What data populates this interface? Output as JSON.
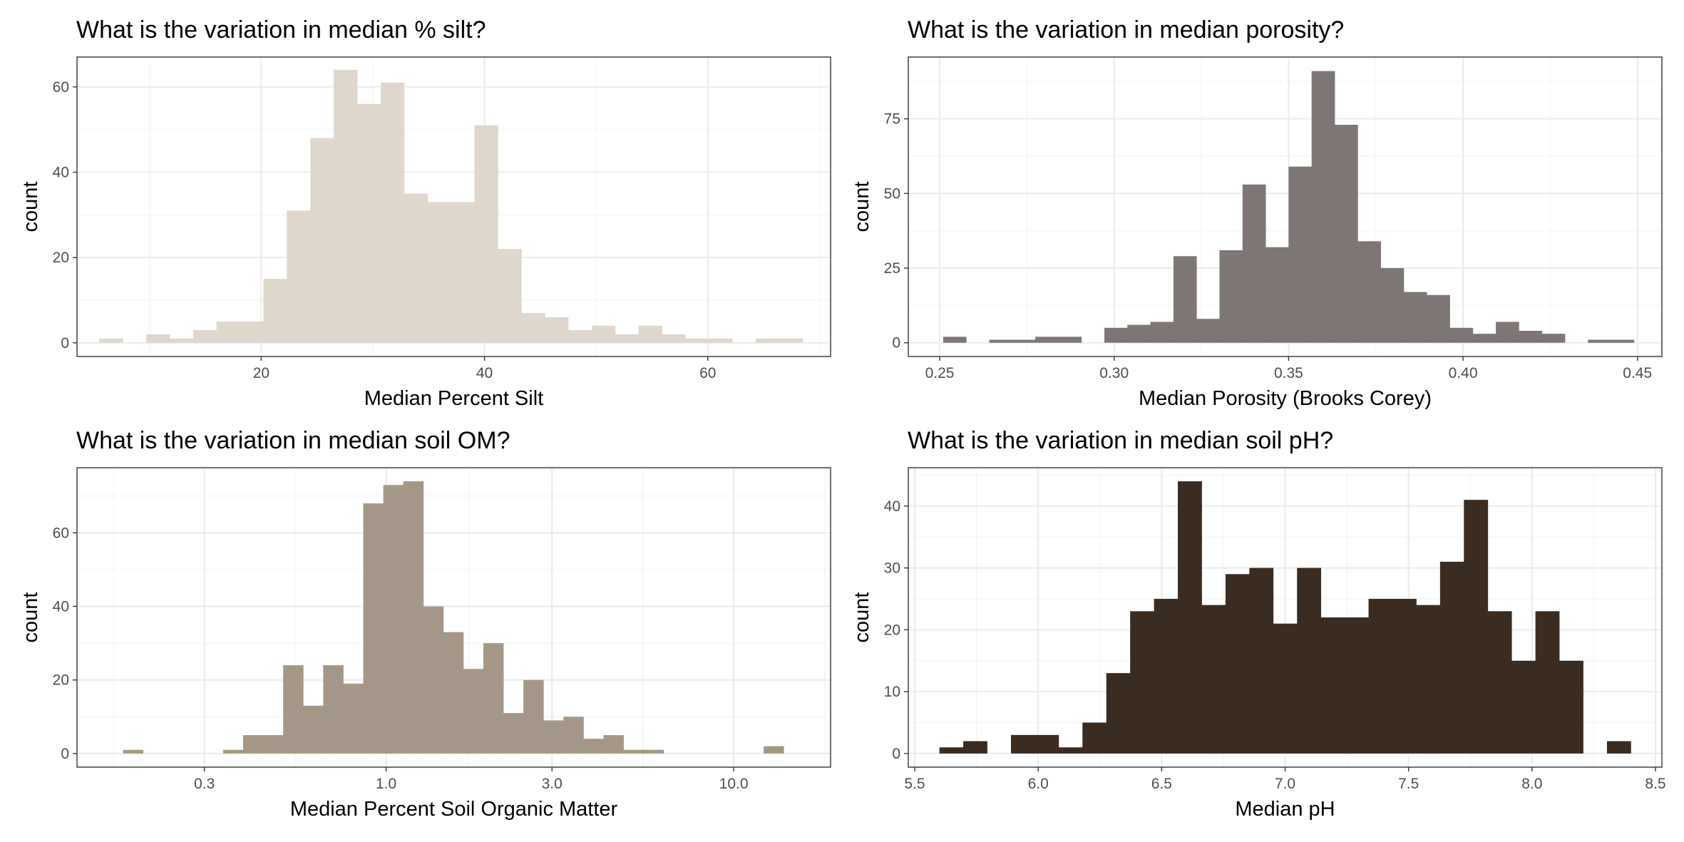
{
  "chart_data": [
    {
      "type": "bar",
      "title": "What is the variation in median % silt?",
      "xlabel": "Median Percent Silt",
      "ylabel": "count",
      "fill": "#dfd6cc",
      "xscale": "linear",
      "xlim": [
        3.5,
        71
      ],
      "ylim": [
        -3.2,
        67
      ],
      "xticks": [
        20,
        40,
        60
      ],
      "xtick_labels": [
        "20",
        "40",
        "60"
      ],
      "yticks": [
        0,
        20,
        40,
        60
      ],
      "ytick_labels": [
        "0",
        "20",
        "40",
        "60"
      ],
      "bin_edges": [
        5.5,
        7.6,
        9.7,
        11.8,
        13.9,
        16.0,
        18.1,
        20.2,
        22.3,
        24.4,
        26.5,
        28.6,
        30.7,
        32.8,
        34.9,
        37.0,
        39.1,
        41.2,
        43.3,
        45.4,
        47.5,
        49.6,
        51.7,
        53.8,
        55.9,
        58.0,
        60.1,
        62.2,
        64.3,
        66.4,
        68.5
      ],
      "values": [
        1,
        0,
        2,
        1,
        3,
        5,
        5,
        15,
        31,
        48,
        64,
        56,
        61,
        35,
        33,
        33,
        51,
        22,
        7,
        6,
        3,
        4,
        2,
        4,
        2,
        1,
        1,
        0,
        1,
        1
      ],
      "grid": true
    },
    {
      "type": "bar",
      "title": "What is the variation in median porosity?",
      "xlabel": "Median Porosity (Brooks Corey)",
      "ylabel": "count",
      "fill": "#7e7575",
      "xscale": "linear",
      "xlim": [
        0.241,
        0.457
      ],
      "ylim": [
        -4.6,
        95.7
      ],
      "xticks": [
        0.25,
        0.3,
        0.35,
        0.4,
        0.45
      ],
      "xtick_labels": [
        "0.25",
        "0.30",
        "0.35",
        "0.40",
        "0.45"
      ],
      "yticks": [
        0,
        25,
        50,
        75
      ],
      "ytick_labels": [
        "0",
        "25",
        "50",
        "75"
      ],
      "bin_edges": [
        0.251,
        0.2576,
        0.2642,
        0.2708,
        0.2774,
        0.284,
        0.2906,
        0.2972,
        0.3038,
        0.3104,
        0.317,
        0.3236,
        0.3302,
        0.3368,
        0.3434,
        0.35,
        0.3566,
        0.3632,
        0.3698,
        0.3764,
        0.383,
        0.3896,
        0.3962,
        0.4028,
        0.4094,
        0.416,
        0.4226,
        0.4292,
        0.4358,
        0.4424,
        0.449
      ],
      "values": [
        2,
        0,
        1,
        1,
        2,
        2,
        0,
        5,
        6,
        7,
        29,
        8,
        31,
        53,
        32,
        59,
        91,
        73,
        34,
        25,
        17,
        16,
        5,
        3,
        7,
        4,
        3,
        0,
        1,
        1
      ],
      "grid": true
    },
    {
      "type": "bar",
      "title": "What is the variation in median soil OM?",
      "xlabel": "Median Percent Soil Organic Matter",
      "ylabel": "count",
      "fill": "#a59787",
      "xscale": "log10",
      "xlim": [
        0.129,
        19.0
      ],
      "ylim": [
        -3.7,
        77.7
      ],
      "xticks": [
        0.3,
        1.0,
        3.0,
        10.0
      ],
      "xtick_labels": [
        "0.3",
        "1.0",
        "3.0",
        "10.0"
      ],
      "yticks": [
        0,
        20,
        40,
        60
      ],
      "ytick_labels": [
        "0",
        "20",
        "40",
        "60"
      ],
      "bin_edges": [
        0.175,
        0.1998,
        0.2282,
        0.2605,
        0.2975,
        0.3397,
        0.3878,
        0.4428,
        0.5056,
        0.5773,
        0.6592,
        0.7527,
        0.8594,
        0.9813,
        1.1205,
        1.2794,
        1.4608,
        1.668,
        1.9045,
        2.1746,
        2.483,
        2.8351,
        3.2371,
        3.6962,
        4.2204,
        4.8189,
        5.5022,
        6.2825,
        7.1734,
        8.1907,
        9.3522,
        10.6784,
        12.1928,
        13.9218
      ],
      "values": [
        1,
        0,
        0,
        0,
        0,
        1,
        5,
        5,
        24,
        13,
        24,
        19,
        68,
        73,
        74,
        40,
        33,
        23,
        30,
        11,
        20,
        9,
        10,
        4,
        5,
        1,
        1,
        0,
        0,
        0,
        0,
        0,
        2
      ],
      "grid": true
    },
    {
      "type": "bar",
      "title": "What is the variation in median soil pH?",
      "xlabel": "Median pH",
      "ylabel": "count",
      "fill": "#3b2c22",
      "xscale": "linear",
      "xlim": [
        5.474,
        8.526
      ],
      "ylim": [
        -2.2,
        46.2
      ],
      "xticks": [
        5.5,
        6.0,
        6.5,
        7.0,
        7.5,
        8.0,
        8.5
      ],
      "xtick_labels": [
        "5.5",
        "6.0",
        "6.5",
        "7.0",
        "7.5",
        "8.0",
        "8.5"
      ],
      "yticks": [
        0,
        10,
        20,
        30,
        40
      ],
      "ytick_labels": [
        "0",
        "10",
        "20",
        "30",
        "40"
      ],
      "bin_edges": [
        5.6,
        5.6966,
        5.7931,
        5.8897,
        5.9862,
        6.0828,
        6.1793,
        6.2759,
        6.3724,
        6.469,
        6.5655,
        6.6621,
        6.7586,
        6.8552,
        6.9517,
        7.0483,
        7.1448,
        7.2414,
        7.3379,
        7.4345,
        7.531,
        7.6276,
        7.7241,
        7.8207,
        7.9172,
        8.0138,
        8.1103,
        8.2069,
        8.3034,
        8.4
      ],
      "values": [
        1,
        2,
        0,
        3,
        3,
        1,
        5,
        13,
        23,
        25,
        44,
        24,
        29,
        30,
        21,
        30,
        22,
        22,
        25,
        25,
        24,
        31,
        41,
        23,
        15,
        23,
        15,
        0,
        2
      ],
      "grid": true
    }
  ]
}
